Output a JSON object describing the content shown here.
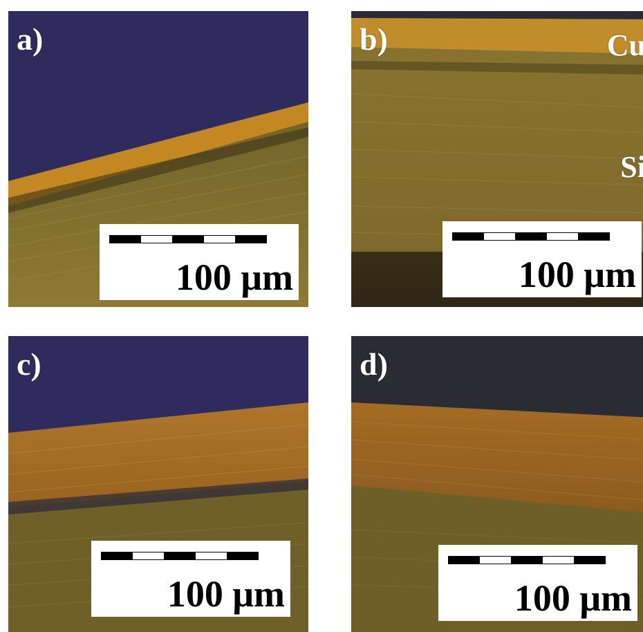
{
  "panels": [
    {
      "id": "a",
      "label": "a)",
      "scale_bar_text": "100 μm"
    },
    {
      "id": "b",
      "label": "b)",
      "scale_bar_text": "100 μm",
      "material_labels": {
        "cu": "Cu",
        "si": "Si"
      }
    },
    {
      "id": "c",
      "label": "c)",
      "scale_bar_text": "100 μm"
    },
    {
      "id": "d",
      "label": "d)",
      "scale_bar_text": "100 μm"
    }
  ],
  "colors": {
    "background_blue": "#2f2b5c",
    "background_dark": "#2a2b33",
    "copper": "#c88a22",
    "silicon": "#8a7430",
    "scale_box": "#ffffff",
    "label": "#ffffff"
  }
}
